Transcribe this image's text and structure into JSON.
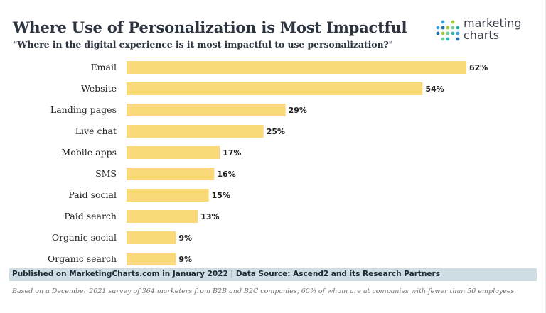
{
  "header": {
    "title": "Where Use of Personalization is Most Impactful",
    "subtitle": "\"Where in the digital experience is it most impactful to use personalization?\""
  },
  "logo": {
    "line1": "marketing",
    "line2": "charts",
    "dot_colors": [
      "#2bb3b1",
      "#39a4d8",
      "#1f6fa8",
      "#a5c93a",
      "#6fcf97"
    ]
  },
  "chart_data": {
    "type": "bar",
    "orientation": "horizontal",
    "title": "Where Use of Personalization is Most Impactful",
    "categories": [
      "Email",
      "Website",
      "Landing pages",
      "Live chat",
      "Mobile apps",
      "SMS",
      "Paid social",
      "Paid search",
      "Organic social",
      "Organic search"
    ],
    "values": [
      62,
      54,
      29,
      25,
      17,
      16,
      15,
      13,
      9,
      9
    ],
    "labels": [
      "62%",
      "54%",
      "29%",
      "25%",
      "17%",
      "16%",
      "15%",
      "13%",
      "9%",
      "9%"
    ],
    "xlim": [
      0,
      62
    ],
    "bar_color": "#fad97a",
    "grid": false,
    "legend": "none"
  },
  "footer": {
    "source": "Published on MarketingCharts.com in January 2022 | Data Source: Ascend2 and its Research Partners",
    "note": "Based on a December 2021 survey of 364 marketers from B2B and B2C companies, 60% of whom are at companies with fewer than 50 employees"
  }
}
